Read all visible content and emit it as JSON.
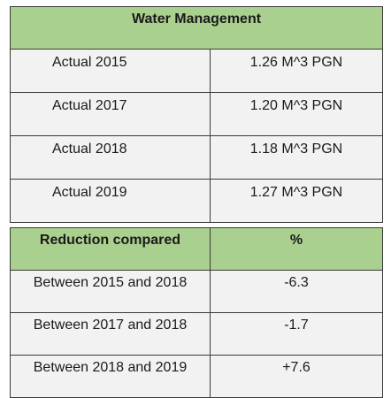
{
  "water_management": {
    "title": "Water Management",
    "rows": [
      {
        "label": "Actual 2015",
        "value": "1.26 M^3 PGN"
      },
      {
        "label": "Actual 2017",
        "value": "1.20 M^3 PGN"
      },
      {
        "label": "Actual 2018",
        "value": "1.18 M^3 PGN"
      },
      {
        "label": "Actual 2019",
        "value": "1.27 M^3 PGN"
      }
    ]
  },
  "reduction": {
    "headers": [
      "Reduction compared",
      "%"
    ],
    "rows": [
      {
        "label": "Between 2015 and 2018",
        "value": "-6.3"
      },
      {
        "label": "Between 2017 and 2018",
        "value": "-1.7"
      },
      {
        "label": "Between 2018 and 2019",
        "value": "+7.6"
      }
    ]
  },
  "colors": {
    "header_fill": "#a9d08e",
    "body_fill": "#f2f2f2",
    "border": "#3a3a3a"
  }
}
